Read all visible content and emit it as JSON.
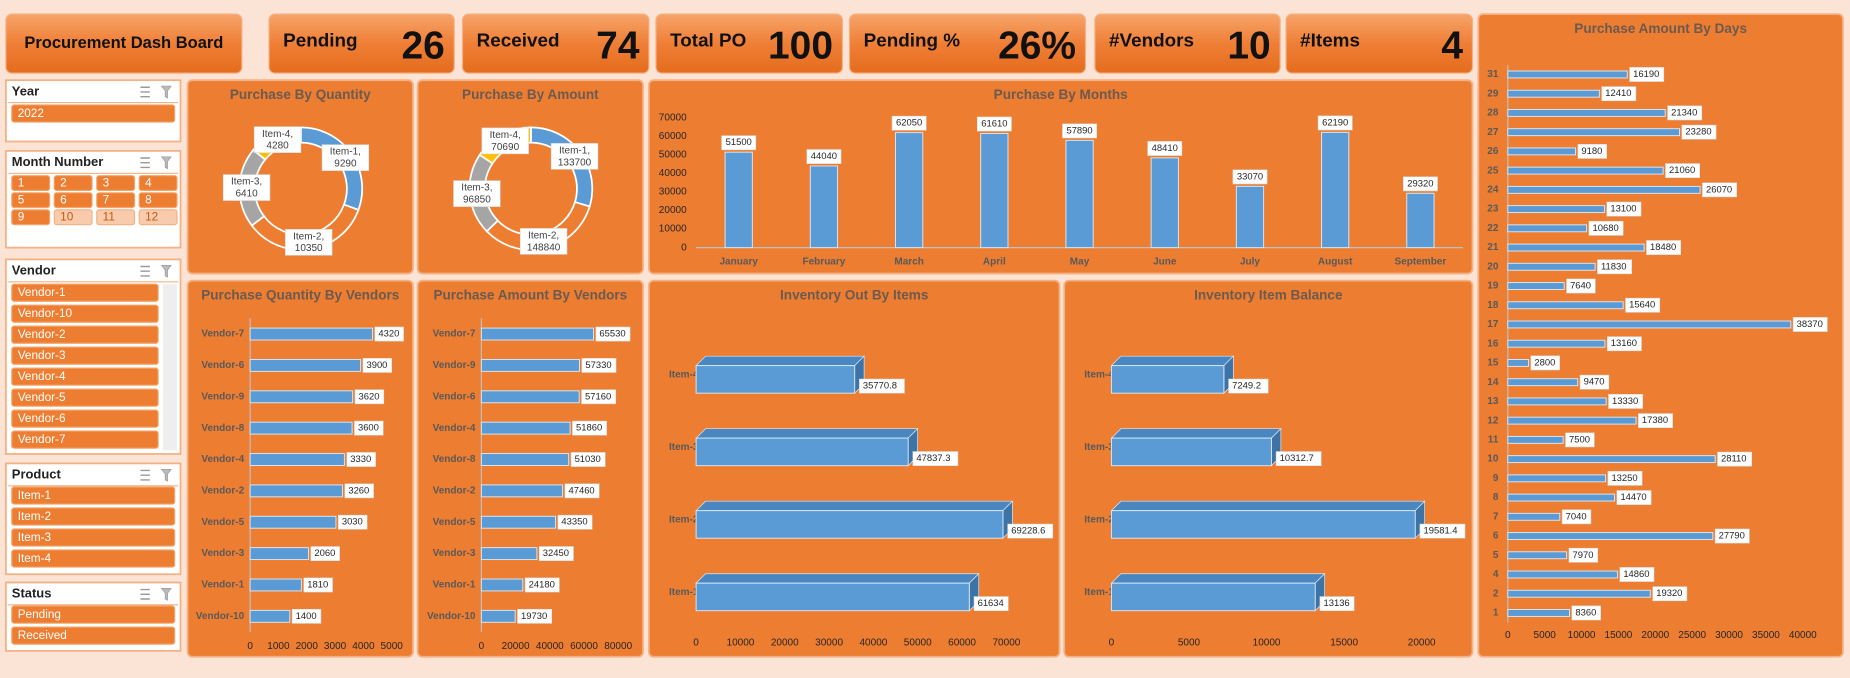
{
  "header": {
    "title": "Procurement Dash Board"
  },
  "kpis": [
    {
      "label": "Pending",
      "value": 26
    },
    {
      "label": "Received",
      "value": 74
    },
    {
      "label": "Total PO",
      "value": 100
    },
    {
      "label": "Pending %",
      "value": "26%"
    },
    {
      "label": "#Vendors",
      "value": 10
    },
    {
      "label": "#Items",
      "value": 4
    }
  ],
  "slicers": [
    {
      "title": "Year",
      "items": [
        "2022"
      ]
    },
    {
      "title": "Month Number",
      "items": [
        "1",
        "2",
        "3",
        "4",
        "5",
        "6",
        "7",
        "8",
        "9",
        "10",
        "11",
        "12"
      ]
    },
    {
      "title": "Vendor",
      "items": [
        "Vendor-1",
        "Vendor-10",
        "Vendor-2",
        "Vendor-3",
        "Vendor-4",
        "Vendor-5",
        "Vendor-6",
        "Vendor-7"
      ]
    },
    {
      "title": "Product",
      "items": [
        "Item-1",
        "Item-2",
        "Item-3",
        "Item-4"
      ]
    },
    {
      "title": "Status",
      "items": [
        "Pending",
        "Received"
      ]
    }
  ],
  "chart_data": [
    {
      "type": "donut",
      "title": "Purchase By Quantity",
      "categories": [
        "Item-1",
        "Item-2",
        "Item-3",
        "Item-4"
      ],
      "values": [
        9290,
        10350,
        6410,
        4280
      ],
      "value_labels": [
        [
          "Item-1,",
          "9290"
        ],
        [
          "Item-2,",
          "10350"
        ],
        [
          "Item-3,",
          "6410"
        ],
        [
          "Item-4,",
          "4280"
        ]
      ],
      "colors": [
        "#5b9bd5",
        "#ed7d31",
        "#a5a5a5",
        "#ffc000"
      ]
    },
    {
      "type": "donut",
      "title": "Purchase By Amount",
      "categories": [
        "Item-1",
        "Item-2",
        "Item-3",
        "Item-4"
      ],
      "values": [
        133700,
        148840,
        96850,
        70690
      ],
      "value_labels": [
        [
          "Item-1,",
          "133700"
        ],
        [
          "Item-2,",
          "148840"
        ],
        [
          "Item-3,",
          "96850"
        ],
        [
          "Item-4,",
          "70690"
        ]
      ],
      "colors": [
        "#5b9bd5",
        "#ed7d31",
        "#a5a5a5",
        "#ffc000"
      ]
    },
    {
      "type": "bar",
      "title": "Purchase By Months",
      "categories": [
        "January",
        "February",
        "March",
        "April",
        "May",
        "June",
        "July",
        "August",
        "September"
      ],
      "values": [
        51500,
        44040,
        62050,
        61610,
        57890,
        48410,
        33070,
        62190,
        29320
      ],
      "color": "#5b9bd5",
      "ylim": [
        0,
        70000
      ],
      "yticks": [
        0,
        10000,
        20000,
        30000,
        40000,
        50000,
        60000,
        70000
      ],
      "grid": false
    },
    {
      "type": "hbar",
      "title": "Purchase Quantity By Vendors",
      "categories": [
        "Vendor-7",
        "Vendor-6",
        "Vendor-9",
        "Vendor-8",
        "Vendor-4",
        "Vendor-2",
        "Vendor-5",
        "Vendor-3",
        "Vendor-1",
        "Vendor-10"
      ],
      "values": [
        4320,
        3900,
        3620,
        3600,
        3330,
        3260,
        3030,
        2060,
        1810,
        1400
      ],
      "color": "#5b9bd5",
      "xlim": [
        0,
        5000
      ],
      "xticks": [
        0,
        1000,
        2000,
        3000,
        4000,
        5000
      ]
    },
    {
      "type": "hbar",
      "title": "Purchase Amount By Vendors",
      "categories": [
        "Vendor-7",
        "Vendor-9",
        "Vendor-6",
        "Vendor-4",
        "Vendor-8",
        "Vendor-2",
        "Vendor-5",
        "Vendor-3",
        "Vendor-1",
        "Vendor-10"
      ],
      "values": [
        65530,
        57330,
        57160,
        51860,
        51030,
        47460,
        43350,
        32450,
        24180,
        19730
      ],
      "color": "#5b9bd5",
      "xlim": [
        0,
        80000
      ],
      "xticks": [
        0,
        20000,
        40000,
        60000,
        80000
      ]
    },
    {
      "type": "hbar",
      "title": "Inventory Out By Items",
      "three_d": true,
      "categories": [
        "Item-4",
        "Item-3",
        "Item-2",
        "Item-1"
      ],
      "values": [
        35770.8,
        47837.3,
        69228.6,
        61634
      ],
      "color": "#5b9bd5",
      "xlim": [
        0,
        70000
      ],
      "xticks": [
        0,
        10000,
        20000,
        30000,
        40000,
        50000,
        60000,
        70000
      ]
    },
    {
      "type": "hbar",
      "title": "Inventory Item Balance",
      "three_d": true,
      "categories": [
        "Item-4",
        "Item-3",
        "Item-2",
        "Item-1"
      ],
      "values": [
        7249.2,
        10312.7,
        19581.4,
        13136
      ],
      "color": "#5b9bd5",
      "xlim": [
        0,
        20000
      ],
      "xticks": [
        0,
        5000,
        10000,
        15000,
        20000
      ]
    },
    {
      "type": "hbar",
      "title": "Purchase Amount By Days",
      "categories": [
        "31",
        "29",
        "28",
        "27",
        "26",
        "25",
        "24",
        "23",
        "22",
        "21",
        "20",
        "19",
        "18",
        "17",
        "16",
        "15",
        "14",
        "13",
        "12",
        "11",
        "10",
        "9",
        "8",
        "7",
        "6",
        "5",
        "4",
        "2",
        "1"
      ],
      "values": [
        16190,
        12410,
        21340,
        23280,
        9180,
        21060,
        26070,
        13100,
        10680,
        18480,
        11830,
        7640,
        15640,
        38370,
        13160,
        2800,
        9470,
        13330,
        17380,
        7500,
        28110,
        13250,
        14470,
        7040,
        27790,
        7970,
        14860,
        19320,
        8360
      ],
      "color": "#5b9bd5",
      "xlim": [
        0,
        40000
      ],
      "xticks": [
        0,
        5000,
        10000,
        15000,
        20000,
        25000,
        30000,
        35000,
        40000
      ]
    }
  ]
}
